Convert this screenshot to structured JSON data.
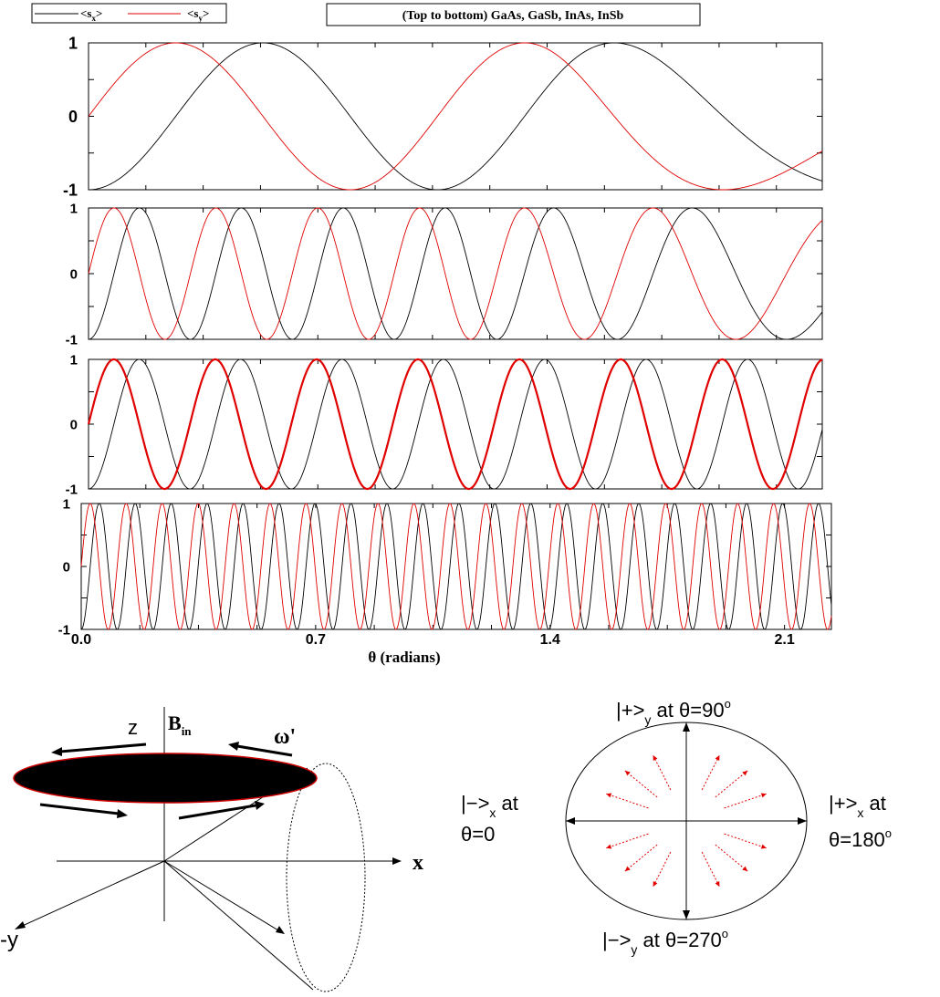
{
  "legend": {
    "sx_label": "<s",
    "sx_sub": "x",
    "sy_label": "<s",
    "sy_sub": "y",
    "close": ">"
  },
  "title_box": "(Top to bottom) GaAs, GaSb, InAs, InSb",
  "x_axis_label": "θ (radians)",
  "colors": {
    "sx": "#000000",
    "sy": "#e00000",
    "ellipse_edge": "#cc0000",
    "arrows": "#e00000"
  },
  "chart_data": [
    {
      "type": "line",
      "panel": "GaAs",
      "x_range": [
        0.0,
        2.24
      ],
      "ylim": [
        -1,
        1
      ],
      "y_ticks": [
        "1",
        "0",
        "-1"
      ],
      "series": [
        {
          "name": "<sx>",
          "color": "#000000",
          "wavenumber": 5.9,
          "phase": 0.0,
          "stretch_from": 1.45,
          "stretch_rate": 0.62,
          "function": "-cos"
        },
        {
          "name": "<sy>",
          "color": "#e00000",
          "wavenumber": 5.9,
          "phase": 0.0,
          "stretch_from": 1.45,
          "stretch_rate": 0.62,
          "function": "sin"
        }
      ]
    },
    {
      "type": "line",
      "panel": "GaSb",
      "x_range": [
        0.0,
        2.24
      ],
      "ylim": [
        -1,
        1
      ],
      "y_ticks": [
        "1",
        "0",
        "-1"
      ],
      "series": [
        {
          "name": "<sx>",
          "color": "#000000",
          "wavenumber": 20.2,
          "phase": 0.0,
          "stretch_from": 1.15,
          "stretch_rate": 0.55,
          "function": "-cos"
        },
        {
          "name": "<sy>",
          "color": "#e00000",
          "wavenumber": 20.2,
          "phase": 0.0,
          "stretch_from": 1.15,
          "stretch_rate": 0.55,
          "function": "sin"
        }
      ]
    },
    {
      "type": "line",
      "panel": "InAs",
      "x_range": [
        0.0,
        2.24
      ],
      "ylim": [
        -1,
        1
      ],
      "y_ticks": [
        "1",
        "0",
        "-1"
      ],
      "series": [
        {
          "name": "<sx>",
          "color": "#000000",
          "wavenumber": 20.3,
          "phase": 0.0,
          "stretch_from": 9.0,
          "stretch_rate": 0.0,
          "function": "-cos"
        },
        {
          "name": "<sy>",
          "color": "#e00000",
          "wavenumber": 20.3,
          "phase": 0.0,
          "stretch_from": 9.0,
          "stretch_rate": 0.0,
          "function": "sin",
          "bold": true
        }
      ]
    },
    {
      "type": "line",
      "panel": "InSb",
      "x_range": [
        0.0,
        2.24
      ],
      "ylim": [
        -1,
        1
      ],
      "y_ticks": [
        "1",
        "0",
        "-1"
      ],
      "x_ticks": [
        "0.0",
        "0.7",
        "1.4",
        "2.1"
      ],
      "series": [
        {
          "name": "<sx>",
          "color": "#000000",
          "wavenumber": 58.5,
          "phase": 0.0,
          "stretch_from": 9.0,
          "stretch_rate": 0.0,
          "function": "-cos"
        },
        {
          "name": "<sy>",
          "color": "#e00000",
          "wavenumber": 58.5,
          "phase": 0.0,
          "stretch_from": 9.0,
          "stretch_rate": 0.0,
          "function": "sin"
        }
      ]
    }
  ],
  "diagram_left": {
    "z_label": "z",
    "b_label": "B",
    "b_sub": "in",
    "omega_label": "ω'",
    "x_label": "x",
    "y_label": "-y"
  },
  "diagram_right": {
    "top_label_a": "|+>",
    "top_sub": "y",
    "top_label_b": " at θ=90",
    "top_deg": "o",
    "left_label_a": "|−>",
    "left_sub": "x",
    "left_label_b": " at",
    "left_label_c": "θ=0",
    "right_label_a": "|+>",
    "right_sub": "x",
    "right_label_b": " at",
    "right_label_c": "θ=180",
    "right_deg": "o",
    "bottom_label_a": "|−>",
    "bottom_sub": "y",
    "bottom_label_b": " at θ=270",
    "bottom_deg": "o"
  }
}
